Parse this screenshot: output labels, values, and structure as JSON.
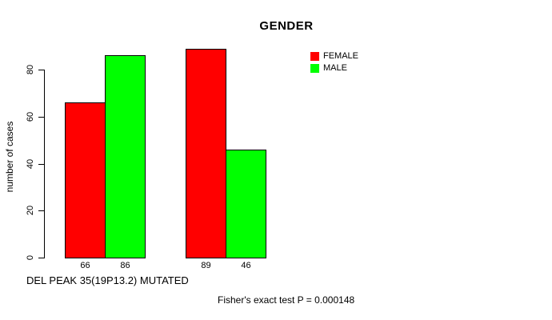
{
  "title": "GENDER",
  "y_axis": {
    "label": "number of cases",
    "ticks": [
      0,
      20,
      40,
      60,
      80
    ]
  },
  "x_axis": {
    "label": "DEL PEAK 35(19P13.2) MUTATED"
  },
  "legend": {
    "entries": [
      {
        "label": "FEMALE",
        "color": "#FF0000"
      },
      {
        "label": "MALE",
        "color": "#00FF00"
      }
    ]
  },
  "annotation": "Fisher's exact test P = 0.000148",
  "chart_data": {
    "type": "bar",
    "title": "GENDER",
    "ylabel": "number of cases",
    "xlabel": "DEL PEAK 35(19P13.2) MUTATED",
    "categories": [
      "",
      ""
    ],
    "series": [
      {
        "name": "FEMALE",
        "color": "#FF0000",
        "values": [
          66,
          89
        ]
      },
      {
        "name": "MALE",
        "color": "#00FF00",
        "values": [
          86,
          46
        ]
      }
    ],
    "bar_value_labels": [
      "66",
      "86",
      "89",
      "46"
    ],
    "yticks": [
      0,
      20,
      40,
      60,
      80
    ],
    "ylim": [
      0,
      91
    ],
    "grid": false,
    "legend_position": "top-right",
    "annotation": "Fisher's exact test P = 0.000148"
  }
}
